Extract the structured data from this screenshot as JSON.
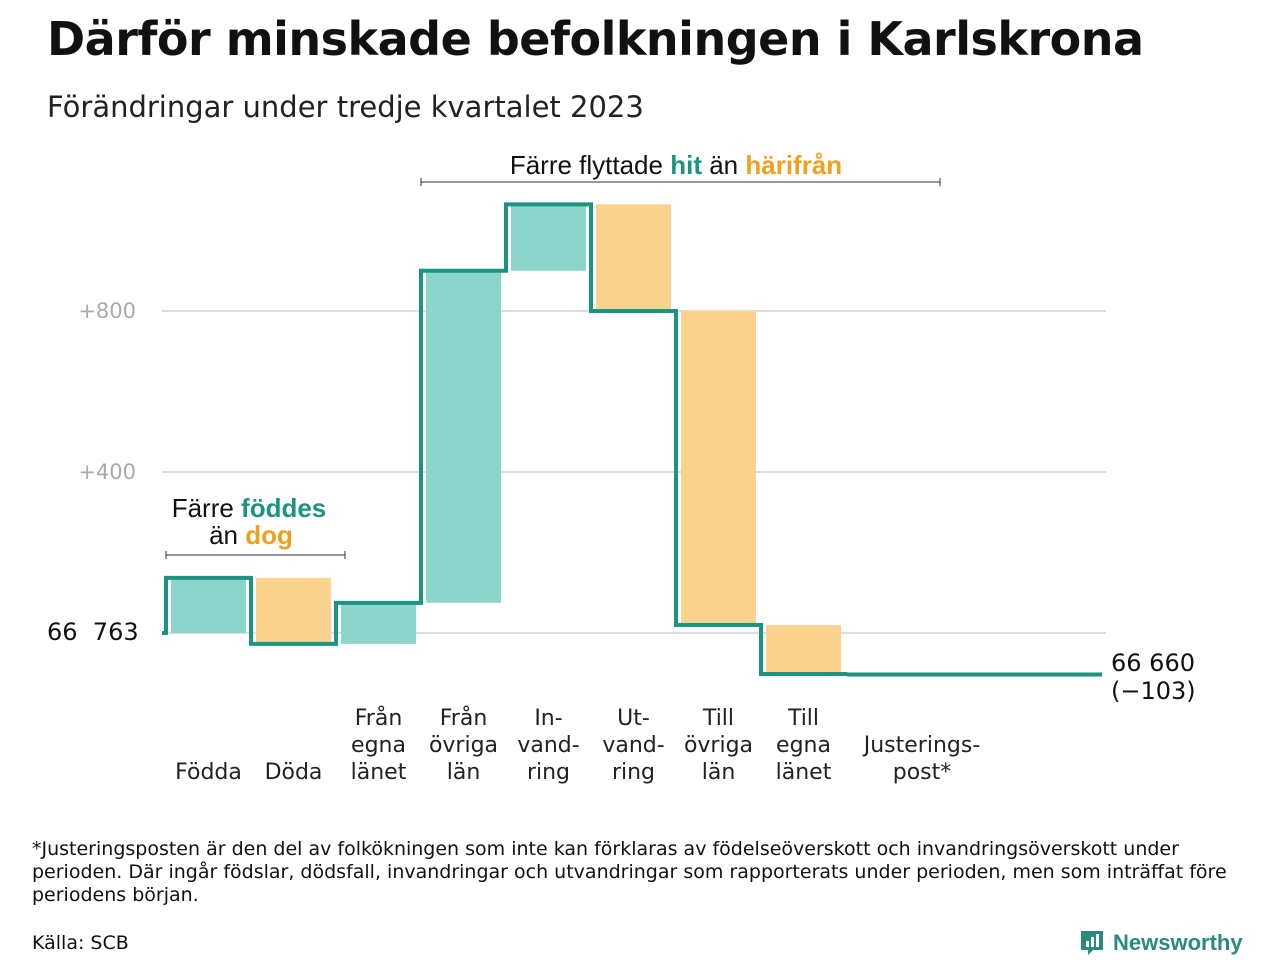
{
  "title": "Därför minskade befolkningen i Karlskrona",
  "subtitle": "Förändringar under tredje kvartalet 2023",
  "colors": {
    "inflow": "#8dd4cb",
    "outflow": "#fad48e",
    "line": "#1b9482",
    "inflow_text": "#1b9482",
    "outflow_text": "#f0a020",
    "grid": "#dddddd"
  },
  "annotations": {
    "births": {
      "line1_a": "Färre ",
      "line1_b": "föddes",
      "line2_a": "än ",
      "line2_b": "dog"
    },
    "migration": {
      "part_a": "Färre flyttade ",
      "part_b": "hit",
      "part_c": " än ",
      "part_d": "härifrån"
    }
  },
  "chart_data": {
    "type": "waterfall",
    "baseline_label": "66  763",
    "start_value": 66763,
    "end_label": "66 660",
    "end_change": "(−103)",
    "y_ticks": [
      {
        "value": 800,
        "label": "+800"
      },
      {
        "value": 400,
        "label": "+400"
      }
    ],
    "ylim": [
      -200,
      1090
    ],
    "steps": [
      {
        "label": [
          "Födda"
        ],
        "delta": 137,
        "kind": "in"
      },
      {
        "label": [
          "Döda"
        ],
        "delta": -164,
        "kind": "out"
      },
      {
        "label": [
          "Från",
          "egna",
          "länet"
        ],
        "delta": 102,
        "kind": "in"
      },
      {
        "label": [
          "Från",
          "övriga",
          "län"
        ],
        "delta": 825,
        "kind": "in"
      },
      {
        "label": [
          "In-",
          "vand-",
          "ring"
        ],
        "delta": 165,
        "kind": "in"
      },
      {
        "label": [
          "Ut-",
          "vand-",
          "ring"
        ],
        "delta": -265,
        "kind": "out"
      },
      {
        "label": [
          "Till",
          "övriga",
          "län"
        ],
        "delta": -780,
        "kind": "out"
      },
      {
        "label": [
          "Till",
          "egna",
          "länet"
        ],
        "delta": -122,
        "kind": "out"
      },
      {
        "label": [
          "Justerings-",
          "post*"
        ],
        "delta": -1,
        "kind": "adjust"
      }
    ]
  },
  "footnote": "*Justeringsposten är den del av folkökningen som inte kan förklaras av födelseöverskott och invandringsöverskott under perioden. Där ingår födslar, dödsfall, invandringar och utvandringar som rapporterats under perioden, men som inträffat före periodens början.",
  "source": "Källa: SCB",
  "brand": {
    "name": "Newsworthy",
    "icon": "newsworthy-logo-icon"
  }
}
